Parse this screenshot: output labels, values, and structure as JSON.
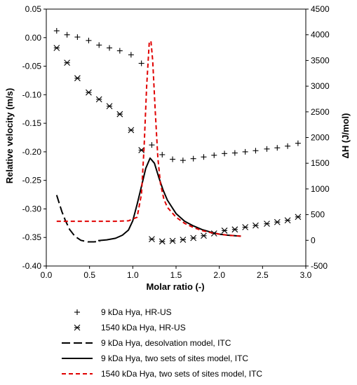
{
  "chart_data": {
    "type": "scatter+line",
    "grid": false,
    "legend_position": "bottom",
    "x_axis": {
      "label": "Molar ratio (-)",
      "range": [
        0,
        3.0
      ],
      "ticks": [
        0,
        0.5,
        1.0,
        1.5,
        2.0,
        2.5,
        3.0
      ],
      "tick_labels": [
        "0.0",
        "0.5",
        "1.0",
        "1.5",
        "2.0",
        "2.5",
        "3.0"
      ]
    },
    "y_left": {
      "label": "Relative velocity (m/s)",
      "range": [
        -0.4,
        0.05
      ],
      "ticks": [
        0.05,
        0.0,
        -0.05,
        -0.1,
        -0.15,
        -0.2,
        -0.25,
        -0.3,
        -0.35,
        -0.4
      ],
      "tick_labels": [
        "0.05",
        "0.00",
        "-0.05",
        "-0.10",
        "-0.15",
        "-0.20",
        "-0.25",
        "-0.30",
        "-0.35",
        "-0.40"
      ]
    },
    "y_right": {
      "label": "ΔH (J/mol)",
      "range": [
        -500,
        4500
      ],
      "ticks": [
        4500,
        4000,
        3500,
        3000,
        2500,
        2000,
        1500,
        1000,
        500,
        0,
        -500
      ],
      "tick_labels": [
        "4500",
        "4000",
        "3500",
        "3000",
        "2500",
        "2000",
        "1500",
        "1000",
        "500",
        "0",
        "-500"
      ]
    },
    "series": [
      {
        "name": "9 kDa Hya, HR-US",
        "kind": "scatter",
        "marker": "plus",
        "axis": "left",
        "color": "#000000",
        "x": [
          0.12,
          0.24,
          0.36,
          0.49,
          0.61,
          0.73,
          0.85,
          0.98,
          1.1,
          1.22,
          1.34,
          1.46,
          1.58,
          1.7,
          1.82,
          1.94,
          2.06,
          2.18,
          2.3,
          2.42,
          2.55,
          2.67,
          2.79,
          2.91
        ],
        "y": [
          0.012,
          0.005,
          0.001,
          -0.005,
          -0.013,
          -0.018,
          -0.023,
          -0.03,
          -0.045,
          -0.188,
          -0.205,
          -0.213,
          -0.215,
          -0.212,
          -0.209,
          -0.206,
          -0.203,
          -0.202,
          -0.2,
          -0.198,
          -0.195,
          -0.193,
          -0.19,
          -0.185
        ]
      },
      {
        "name": "1540 kDa Hya, HR-US",
        "kind": "scatter",
        "marker": "asterisk",
        "axis": "left",
        "color": "#000000",
        "x": [
          0.12,
          0.24,
          0.36,
          0.49,
          0.61,
          0.73,
          0.85,
          0.98,
          1.1,
          1.22,
          1.34,
          1.46,
          1.58,
          1.7,
          1.82,
          1.94,
          2.06,
          2.18,
          2.3,
          2.42,
          2.55,
          2.67,
          2.79,
          2.91
        ],
        "y": [
          -0.018,
          -0.044,
          -0.071,
          -0.096,
          -0.108,
          -0.12,
          -0.134,
          -0.162,
          -0.197,
          -0.353,
          -0.357,
          -0.356,
          -0.354,
          -0.351,
          -0.347,
          -0.343,
          -0.338,
          -0.336,
          -0.332,
          -0.329,
          -0.326,
          -0.323,
          -0.32,
          -0.314
        ]
      },
      {
        "name": "9 kDa Hya, desolvation model, ITC",
        "kind": "line",
        "style": "long-dash",
        "axis": "right",
        "color": "#000000",
        "x": [
          0.12,
          0.15,
          0.18,
          0.22,
          0.27,
          0.33,
          0.4,
          0.48,
          0.55,
          0.62
        ],
        "y": [
          880,
          720,
          560,
          390,
          210,
          80,
          0,
          -30,
          -30,
          -20
        ]
      },
      {
        "name": "9 kDa Hya, two sets of sites model, ITC",
        "kind": "line",
        "style": "solid",
        "axis": "right",
        "color": "#000000",
        "x": [
          0.6,
          0.7,
          0.8,
          0.88,
          0.95,
          1.0,
          1.05,
          1.1,
          1.15,
          1.2,
          1.25,
          1.3,
          1.35,
          1.4,
          1.5,
          1.6,
          1.7,
          1.8,
          1.9,
          2.0,
          2.1,
          2.25
        ],
        "y": [
          -5,
          10,
          40,
          100,
          200,
          380,
          700,
          1050,
          1400,
          1600,
          1500,
          1230,
          980,
          780,
          520,
          370,
          280,
          210,
          160,
          120,
          100,
          80
        ]
      },
      {
        "name": "1540 kDa Hya, two sets of sites model, ITC",
        "kind": "line",
        "style": "dashed",
        "axis": "right",
        "color": "#e00000",
        "x": [
          0.12,
          0.4,
          0.8,
          0.95,
          1.05,
          1.1,
          1.13,
          1.16,
          1.19,
          1.21,
          1.23,
          1.26,
          1.29,
          1.32,
          1.36,
          1.4,
          1.5,
          1.6,
          1.7,
          1.8,
          1.9,
          2.0,
          2.1,
          2.25
        ],
        "y": [
          370,
          370,
          370,
          380,
          450,
          900,
          1800,
          3000,
          3850,
          3880,
          3500,
          2500,
          1600,
          1100,
          800,
          640,
          450,
          330,
          250,
          190,
          150,
          120,
          100,
          80
        ]
      }
    ]
  }
}
